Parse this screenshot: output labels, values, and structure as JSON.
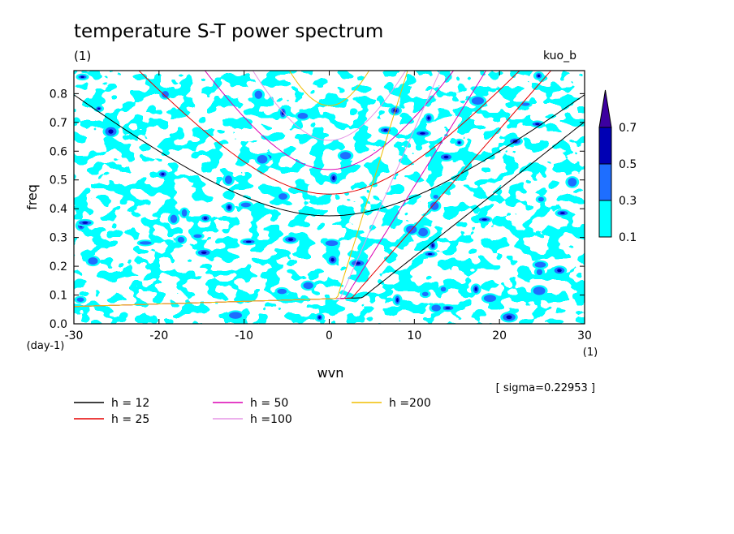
{
  "chart_data": {
    "type": "contour",
    "title": "temperature S-T power spectrum",
    "subtitle_left": "(1)",
    "subtitle_right": "kuo_b",
    "xlabel": "wvn",
    "ylabel": "freq",
    "x_unit": "(1)",
    "y_unit": "(day-1)",
    "xlim": [
      -30,
      30
    ],
    "ylim": [
      0,
      0.88
    ],
    "xticks": [
      -30,
      -20,
      -10,
      0,
      10,
      20,
      30
    ],
    "xtick_labels": [
      "-30",
      "-20",
      "-10",
      "0",
      "10",
      "20",
      "30"
    ],
    "yticks": [
      0,
      0.1,
      0.2,
      0.3,
      0.4,
      0.5,
      0.6,
      0.7,
      0.8
    ],
    "ytick_labels": [
      "0.0",
      "0.1",
      "0.2",
      "0.3",
      "0.4",
      "0.5",
      "0.6",
      "0.7",
      "0.8"
    ],
    "note": "[ sigma=0.22953 ]",
    "colorbar": {
      "levels": [
        "0.1",
        "0.3",
        "0.5",
        "0.7"
      ],
      "colors": [
        "#00ffff",
        "#1e6eff",
        "#0000b4",
        "#3c00a0"
      ]
    },
    "contours": [
      {
        "level": 0.1,
        "color": "#00ffff"
      },
      {
        "level": 0.3,
        "color": "#1e6eff"
      },
      {
        "level": 0.5,
        "color": "#0000b4"
      }
    ],
    "series": [
      {
        "name": "h = 12",
        "h": 12,
        "color": "#000000"
      },
      {
        "name": "h = 25",
        "h": 25,
        "color": "#e60000"
      },
      {
        "name": "h = 50",
        "h": 50,
        "color": "#dc00b4"
      },
      {
        "name": "h =100",
        "h": 100,
        "color": "#e696e6"
      },
      {
        "name": "h =200",
        "h": 200,
        "color": "#f0be00"
      }
    ]
  }
}
